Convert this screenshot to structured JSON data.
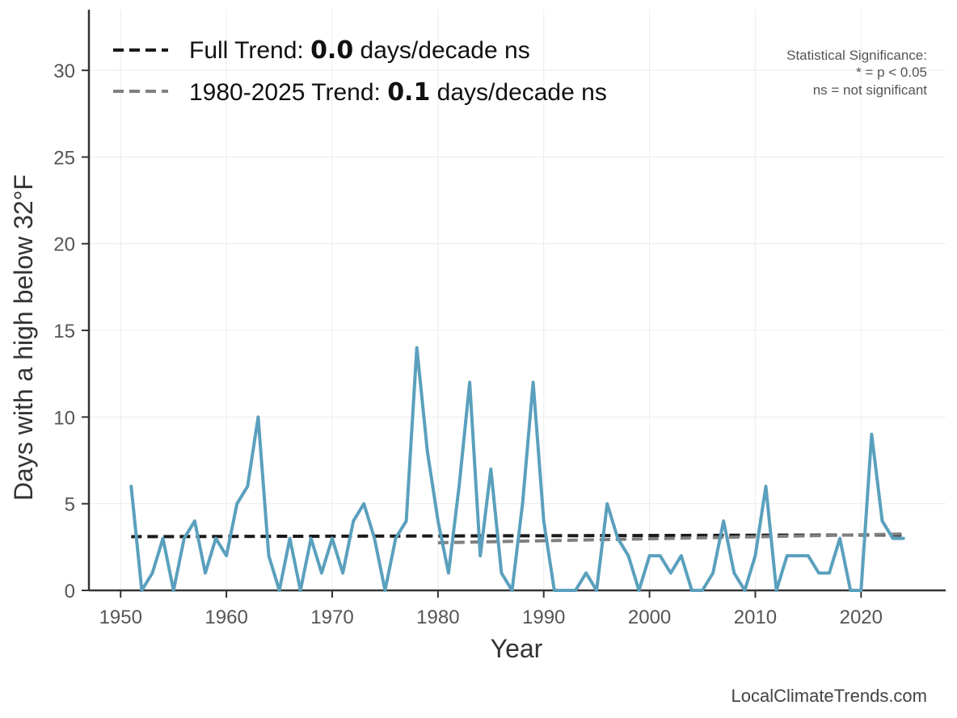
{
  "chart_data": {
    "type": "line",
    "xlabel": "Year",
    "ylabel": "Days with a high below 32°F",
    "xlim": [
      1947,
      2028
    ],
    "ylim": [
      0,
      33.5
    ],
    "xticks": [
      1950,
      1960,
      1970,
      1980,
      1990,
      2000,
      2010,
      2020
    ],
    "yticks": [
      0,
      5,
      10,
      15,
      20,
      25,
      30
    ],
    "grid": true,
    "x": [
      1951,
      1952,
      1953,
      1954,
      1955,
      1956,
      1957,
      1958,
      1959,
      1960,
      1961,
      1962,
      1963,
      1964,
      1965,
      1966,
      1967,
      1968,
      1969,
      1970,
      1971,
      1972,
      1973,
      1974,
      1975,
      1976,
      1977,
      1978,
      1979,
      1980,
      1981,
      1982,
      1983,
      1984,
      1985,
      1986,
      1987,
      1988,
      1989,
      1990,
      1991,
      1992,
      1993,
      1994,
      1995,
      1996,
      1997,
      1998,
      1999,
      2000,
      2001,
      2002,
      2003,
      2004,
      2005,
      2006,
      2007,
      2008,
      2009,
      2010,
      2011,
      2012,
      2013,
      2014,
      2015,
      2016,
      2017,
      2018,
      2019,
      2020,
      2021,
      2022,
      2023,
      2024
    ],
    "series": [
      {
        "values": [
          6,
          0,
          1,
          3,
          0,
          3,
          4,
          1,
          3,
          2,
          5,
          6,
          10,
          2,
          0,
          3,
          0,
          3,
          1,
          3,
          1,
          4,
          5,
          3,
          0,
          3,
          4,
          14,
          8,
          4,
          1,
          6,
          12,
          2,
          7,
          1,
          0,
          5,
          12,
          4,
          0,
          0,
          0,
          1,
          0,
          5,
          3,
          2,
          0,
          2,
          2,
          1,
          2,
          0,
          0,
          1,
          4,
          1,
          0,
          2,
          6,
          0,
          2,
          2,
          2,
          1,
          1,
          3,
          0,
          0,
          9,
          4,
          3,
          3
        ],
        "color": "#5aa0bd"
      }
    ],
    "trends": [
      {
        "label": "Full Trend: ",
        "value": "0.0",
        "suffix": " days/decade ns",
        "x": [
          1951,
          2024
        ],
        "y": [
          3.1,
          3.2
        ],
        "color": "#1a1a1a"
      },
      {
        "label": "1980-2025 Trend: ",
        "value": "0.1",
        "suffix": " days/decade ns",
        "x": [
          1980,
          2024
        ],
        "y": [
          2.75,
          3.25
        ],
        "color": "#808080"
      }
    ],
    "significance_note": [
      "Statistical Significance:",
      "* = p < 0.05",
      "ns = not significant"
    ],
    "legend_position": "top-left"
  },
  "footer": "LocalClimateTrends.com"
}
